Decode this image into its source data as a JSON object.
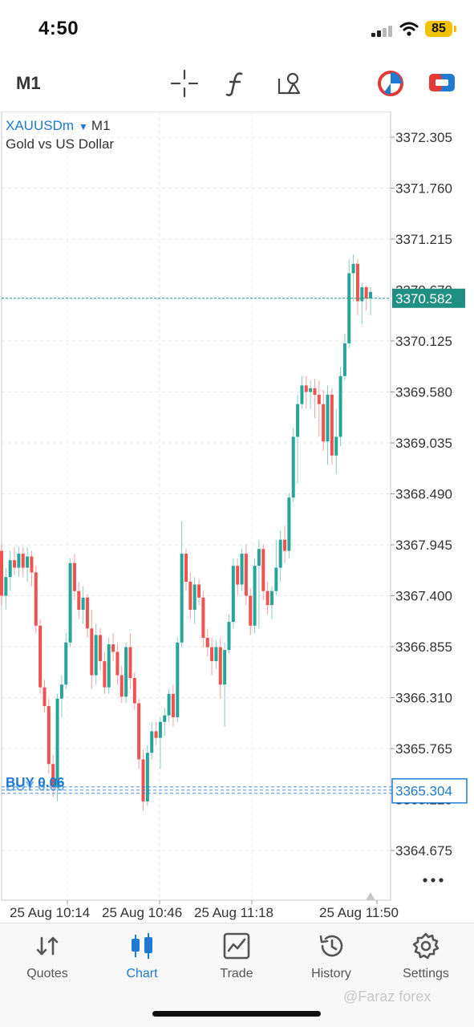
{
  "status_bar": {
    "time": "4:50",
    "battery": "85"
  },
  "toolbar": {
    "timeframe": "M1",
    "icons": [
      "crosshair-icon",
      "indicators-icon",
      "objects-icon",
      "status-icon",
      "trade-icon"
    ]
  },
  "chart": {
    "symbol": "XAUUSDm",
    "timeframe": "M1",
    "description": "Gold vs US Dollar",
    "current_price": "3370.582",
    "position_price": "3365.304",
    "position_label": "BUY 0.06",
    "hidden_price_label_top": "3370.670",
    "hidden_price_label_bottom": "3365.220",
    "grid": true,
    "price_axis_labels": [
      "3372.305",
      "3371.760",
      "3371.215",
      "3370.125",
      "3369.580",
      "3369.035",
      "3368.490",
      "3367.945",
      "3367.400",
      "3366.855",
      "3366.310",
      "3365.765",
      "3364.675"
    ],
    "time_axis_labels": [
      "25 Aug 10:14",
      "25 Aug 10:46",
      "25 Aug 11:18",
      "25 Aug 11:50"
    ],
    "colors": {
      "bull": "#26a69a",
      "bear": "#ef5350",
      "accent": "#1f7ad1",
      "price_tag": "#1f8f84"
    }
  },
  "chart_data": {
    "type": "candlestick",
    "y_range": [
      3364.4,
      3372.6
    ],
    "x_labels": [
      "25 Aug 10:14",
      "25 Aug 10:46",
      "25 Aug 11:18",
      "25 Aug 11:50"
    ],
    "current_price": 3370.582,
    "position_price": 3365.304,
    "candles": [
      [
        3367.88,
        3367.95,
        3367.3,
        3367.4
      ],
      [
        3367.4,
        3367.7,
        3367.25,
        3367.6
      ],
      [
        3367.6,
        3367.88,
        3367.45,
        3367.78
      ],
      [
        3367.78,
        3367.92,
        3367.62,
        3367.7
      ],
      [
        3367.7,
        3367.92,
        3367.6,
        3367.85
      ],
      [
        3367.85,
        3367.92,
        3367.6,
        3367.7
      ],
      [
        3367.7,
        3367.92,
        3367.55,
        3367.82
      ],
      [
        3367.82,
        3367.88,
        3367.5,
        3367.65
      ],
      [
        3367.65,
        3367.72,
        3367.0,
        3367.08
      ],
      [
        3367.08,
        3367.15,
        3366.35,
        3366.42
      ],
      [
        3366.42,
        3366.5,
        3366.15,
        3366.22
      ],
      [
        3366.22,
        3366.3,
        3365.5,
        3365.6
      ],
      [
        3365.6,
        3365.7,
        3365.25,
        3365.35
      ],
      [
        3365.35,
        3366.35,
        3365.2,
        3366.3
      ],
      [
        3366.3,
        3366.55,
        3366.1,
        3366.45
      ],
      [
        3366.45,
        3367.0,
        3366.4,
        3366.9
      ],
      [
        3366.9,
        3367.8,
        3366.85,
        3367.75
      ],
      [
        3367.75,
        3367.85,
        3367.35,
        3367.45
      ],
      [
        3367.45,
        3367.55,
        3367.15,
        3367.25
      ],
      [
        3367.25,
        3367.5,
        3367.1,
        3367.38
      ],
      [
        3367.38,
        3367.42,
        3366.95,
        3367.05
      ],
      [
        3367.05,
        3367.25,
        3366.4,
        3366.55
      ],
      [
        3366.55,
        3367.1,
        3366.45,
        3366.98
      ],
      [
        3366.98,
        3367.05,
        3366.6,
        3366.7
      ],
      [
        3366.7,
        3366.8,
        3366.35,
        3366.42
      ],
      [
        3366.42,
        3366.95,
        3366.35,
        3366.88
      ],
      [
        3366.88,
        3367.0,
        3366.7,
        3366.8
      ],
      [
        3366.8,
        3366.9,
        3366.45,
        3366.55
      ],
      [
        3366.55,
        3366.65,
        3366.25,
        3366.32
      ],
      [
        3366.32,
        3366.9,
        3366.25,
        3366.85
      ],
      [
        3366.85,
        3367.0,
        3366.4,
        3366.52
      ],
      [
        3366.52,
        3366.58,
        3366.18,
        3366.25
      ],
      [
        3366.25,
        3366.3,
        3365.55,
        3365.65
      ],
      [
        3365.65,
        3365.75,
        3365.1,
        3365.2
      ],
      [
        3365.2,
        3365.8,
        3365.15,
        3365.72
      ],
      [
        3365.72,
        3366.05,
        3365.65,
        3365.95
      ],
      [
        3365.95,
        3366.05,
        3365.8,
        3365.88
      ],
      [
        3365.88,
        3366.1,
        3365.55,
        3366.05
      ],
      [
        3366.05,
        3366.2,
        3365.9,
        3366.12
      ],
      [
        3366.12,
        3366.4,
        3366.05,
        3366.35
      ],
      [
        3366.35,
        3366.45,
        3366.0,
        3366.1
      ],
      [
        3366.1,
        3366.95,
        3366.05,
        3366.9
      ],
      [
        3366.9,
        3368.2,
        3366.85,
        3367.85
      ],
      [
        3367.85,
        3367.9,
        3367.45,
        3367.55
      ],
      [
        3367.55,
        3367.65,
        3367.15,
        3367.25
      ],
      [
        3367.25,
        3367.6,
        3367.1,
        3367.52
      ],
      [
        3367.52,
        3367.58,
        3367.3,
        3367.38
      ],
      [
        3367.38,
        3367.45,
        3366.85,
        3366.95
      ],
      [
        3366.95,
        3367.05,
        3366.75,
        3366.85
      ],
      [
        3366.85,
        3366.95,
        3366.55,
        3366.7
      ],
      [
        3366.7,
        3366.92,
        3366.62,
        3366.85
      ],
      [
        3366.85,
        3366.95,
        3366.3,
        3366.45
      ],
      [
        3366.45,
        3366.9,
        3366.0,
        3366.82
      ],
      [
        3366.82,
        3367.2,
        3366.78,
        3367.12
      ],
      [
        3367.12,
        3367.8,
        3367.05,
        3367.72
      ],
      [
        3367.72,
        3367.8,
        3367.4,
        3367.52
      ],
      [
        3367.52,
        3367.9,
        3367.45,
        3367.85
      ],
      [
        3367.85,
        3367.95,
        3367.3,
        3367.4
      ],
      [
        3367.4,
        3367.48,
        3366.98,
        3367.08
      ],
      [
        3367.08,
        3367.8,
        3367.0,
        3367.72
      ],
      [
        3367.72,
        3368.0,
        3367.05,
        3367.9
      ],
      [
        3367.9,
        3367.95,
        3367.35,
        3367.45
      ],
      [
        3367.45,
        3367.55,
        3367.2,
        3367.3
      ],
      [
        3367.3,
        3367.5,
        3367.15,
        3367.45
      ],
      [
        3367.45,
        3368.0,
        3367.4,
        3367.7
      ],
      [
        3367.7,
        3368.1,
        3367.55,
        3368.0
      ],
      [
        3368.0,
        3368.15,
        3367.75,
        3367.88
      ],
      [
        3367.88,
        3368.5,
        3367.8,
        3368.45
      ],
      [
        3368.45,
        3369.2,
        3368.4,
        3369.1
      ],
      [
        3369.1,
        3369.55,
        3368.6,
        3369.45
      ],
      [
        3369.45,
        3369.75,
        3369.4,
        3369.65
      ],
      [
        3369.65,
        3369.75,
        3369.4,
        3369.58
      ],
      [
        3369.58,
        3369.7,
        3369.4,
        3369.62
      ],
      [
        3369.62,
        3369.72,
        3369.3,
        3369.55
      ],
      [
        3369.55,
        3369.7,
        3369.1,
        3369.45
      ],
      [
        3369.45,
        3369.6,
        3368.95,
        3369.05
      ],
      [
        3369.05,
        3369.65,
        3368.8,
        3369.55
      ],
      [
        3369.55,
        3369.62,
        3368.8,
        3368.9
      ],
      [
        3368.9,
        3369.4,
        3368.7,
        3369.1
      ],
      [
        3369.1,
        3369.85,
        3369.0,
        3369.75
      ],
      [
        3369.75,
        3370.2,
        3369.7,
        3370.1
      ],
      [
        3370.1,
        3371.0,
        3370.05,
        3370.85
      ],
      [
        3370.85,
        3371.05,
        3370.55,
        3370.95
      ],
      [
        3370.95,
        3371.0,
        3370.4,
        3370.55
      ],
      [
        3370.55,
        3370.75,
        3370.3,
        3370.7
      ],
      [
        3370.7,
        3370.72,
        3370.45,
        3370.58
      ],
      [
        3370.58,
        3370.7,
        3370.4,
        3370.65
      ]
    ]
  },
  "tabs": [
    {
      "label": "Quotes",
      "active": false
    },
    {
      "label": "Chart",
      "active": true
    },
    {
      "label": "Trade",
      "active": false
    },
    {
      "label": "History",
      "active": false
    },
    {
      "label": "Settings",
      "active": false
    }
  ],
  "watermark": "@Faraz forex"
}
